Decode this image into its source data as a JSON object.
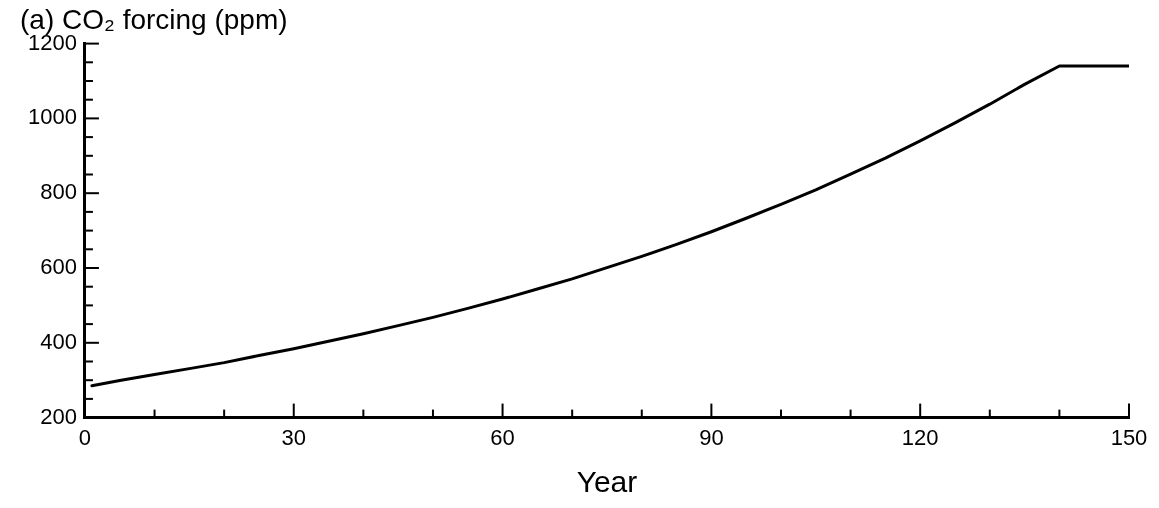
{
  "chart_data": {
    "type": "line",
    "title": "(a) CO₂ forcing (ppm)",
    "xlabel": "Year",
    "x": [
      1,
      5,
      10,
      15,
      20,
      25,
      30,
      35,
      40,
      45,
      50,
      55,
      60,
      65,
      70,
      75,
      80,
      85,
      90,
      95,
      100,
      105,
      110,
      115,
      120,
      125,
      130,
      135,
      140,
      145,
      150
    ],
    "series": [
      {
        "color": "#000000",
        "values": [
          285,
          299,
          315,
          331,
          347,
          366,
          384,
          404,
          424,
          446,
          468,
          492,
          517,
          544,
          571,
          601,
          631,
          663,
          697,
          733,
          770,
          809,
          851,
          894,
          940,
          988,
          1038,
          1091,
          1140,
          1140,
          1140
        ]
      }
    ],
    "xlim": [
      0,
      150
    ],
    "xticks": [
      0,
      {
        "value": 10,
        "label": null
      },
      {
        "value": 20,
        "label": null
      },
      30,
      {
        "value": 40,
        "label": null
      },
      {
        "value": 50,
        "label": null
      },
      60,
      {
        "value": 70,
        "label": null
      },
      {
        "value": 80,
        "label": null
      },
      90,
      {
        "value": 100,
        "label": null
      },
      {
        "value": 110,
        "label": null
      },
      120,
      {
        "value": 130,
        "label": null
      },
      {
        "value": 140,
        "label": null
      },
      150
    ],
    "ylim": [
      200,
      1200
    ],
    "yticks": [
      200,
      {
        "value": 250,
        "label": null
      },
      {
        "value": 300,
        "label": null
      },
      {
        "value": 350,
        "label": null
      },
      400,
      {
        "value": 450,
        "label": null
      },
      {
        "value": 500,
        "label": null
      },
      {
        "value": 550,
        "label": null
      },
      600,
      {
        "value": 650,
        "label": null
      },
      {
        "value": 700,
        "label": null
      },
      {
        "value": 750,
        "label": null
      },
      800,
      {
        "value": 850,
        "label": null
      },
      {
        "value": 900,
        "label": null
      },
      {
        "value": 950,
        "label": null
      },
      1000,
      {
        "value": 1050,
        "label": null
      },
      {
        "value": 1100,
        "label": null
      },
      {
        "value": 1150,
        "label": null
      },
      1200
    ],
    "grid": false,
    "legend": false,
    "marker": "none",
    "line_style": "solid"
  }
}
